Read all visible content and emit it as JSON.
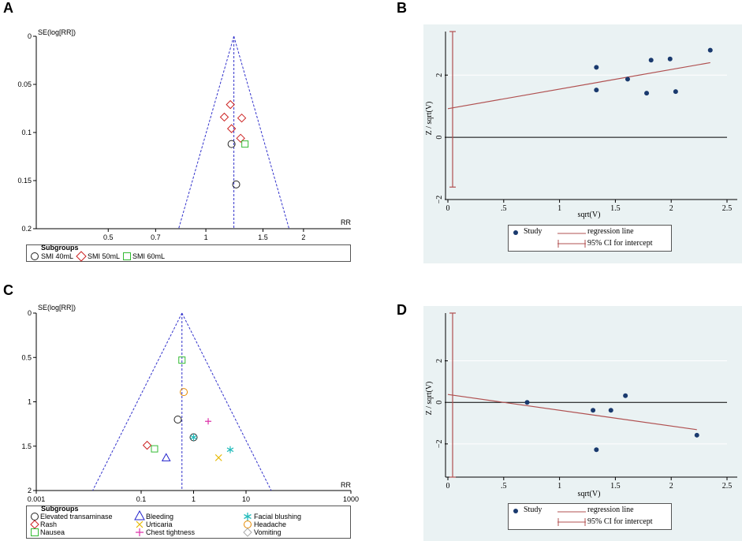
{
  "panels": {
    "A": {
      "letter": "A",
      "ylabel": "SE(log[RR])",
      "xlabel": "RR",
      "y_ticks": [
        "0",
        "0.05",
        "0.1",
        "0.15",
        "0.2"
      ],
      "x_ticks": [
        "0.5",
        "0.7",
        "1",
        "1.5",
        "2"
      ],
      "legend_title": "Subgroups",
      "legend": [
        "SMI 40mL",
        "SMI 50mL",
        "SMI 60mL"
      ]
    },
    "B": {
      "letter": "B",
      "ylabel": "Z / sqrt(V)",
      "xlabel": "sqrt(V)",
      "y_ticks": [
        "−2",
        "0",
        "2"
      ],
      "x_ticks": [
        "0",
        ".5",
        "1",
        "1.5",
        "2",
        "2.5"
      ],
      "legend": [
        "Study",
        "regression line",
        "95% CI for intercept"
      ]
    },
    "C": {
      "letter": "C",
      "ylabel": "SE(log[RR])",
      "xlabel": "RR",
      "y_ticks": [
        "0",
        "0.5",
        "1",
        "1.5",
        "2"
      ],
      "x_ticks": [
        "0.001",
        "0.1",
        "1",
        "10",
        "1000"
      ],
      "legend_title": "Subgroups",
      "legend": [
        "Elevated transaminase",
        "Bleeding",
        "Facial blushing",
        "Rash",
        "Urticaria",
        "Headache",
        "Nausea",
        "Chest tightness",
        "Vomiting"
      ]
    },
    "D": {
      "letter": "D",
      "ylabel": "Z / sqrt(V)",
      "xlabel": "sqrt(V)",
      "y_ticks": [
        "−2",
        "0",
        "2"
      ],
      "x_ticks": [
        "0",
        ".5",
        "1",
        "1.5",
        "2",
        "2.5"
      ],
      "legend": [
        "Study",
        "regression line",
        "95% CI for intercept"
      ]
    }
  },
  "colors": {
    "funnel": "#3333cc",
    "rr_line": "#3333cc",
    "regression": "#b05050",
    "study_dot": "#1a3a6e",
    "stata_bg": "#eaf2f3",
    "grid": "#ffffff",
    "circle": "#222222",
    "diamond": "#cc2222",
    "square": "#33bb33",
    "triangle": "#2222cc",
    "x_mark": "#e6b800",
    "asterisk": "#22bbbb",
    "plus": "#dd33aa",
    "headache": "#e68a00",
    "vomiting": "#aaaaaa"
  },
  "chart_data": [
    {
      "panel": "A",
      "type": "scatter",
      "title": "",
      "xlabel": "RR",
      "ylabel": "SE(log[RR])",
      "x_scale": "log",
      "xlim": [
        0.3,
        2.8
      ],
      "ylim": [
        0,
        0.2
      ],
      "pooled_rr": 1.22,
      "series": [
        {
          "name": "SMI 40mL",
          "marker": "circle",
          "points": [
            {
              "x": 1.2,
              "y": 0.112
            },
            {
              "x": 1.24,
              "y": 0.154
            }
          ]
        },
        {
          "name": "SMI 50mL",
          "marker": "diamond",
          "points": [
            {
              "x": 1.19,
              "y": 0.071
            },
            {
              "x": 1.14,
              "y": 0.084
            },
            {
              "x": 1.29,
              "y": 0.085
            },
            {
              "x": 1.2,
              "y": 0.096
            },
            {
              "x": 1.28,
              "y": 0.106
            }
          ]
        },
        {
          "name": "SMI 60mL",
          "marker": "square",
          "points": [
            {
              "x": 1.32,
              "y": 0.112
            }
          ]
        }
      ]
    },
    {
      "panel": "B",
      "type": "scatter",
      "title": "",
      "xlabel": "sqrt(V)",
      "ylabel": "Z / sqrt(V)",
      "xlim": [
        0,
        2.5
      ],
      "ylim": [
        -2,
        3.4
      ],
      "series": [
        {
          "name": "Study",
          "points": [
            {
              "x": 1.33,
              "y": 2.25
            },
            {
              "x": 1.33,
              "y": 1.52
            },
            {
              "x": 1.61,
              "y": 1.87
            },
            {
              "x": 1.78,
              "y": 1.42
            },
            {
              "x": 1.82,
              "y": 2.48
            },
            {
              "x": 1.99,
              "y": 2.52
            },
            {
              "x": 2.04,
              "y": 1.47
            },
            {
              "x": 2.35,
              "y": 2.8
            }
          ]
        }
      ],
      "regression": {
        "intercept": 0.92,
        "slope": 0.63,
        "x_range": [
          0,
          2.35
        ]
      },
      "intercept_ci": [
        -1.6,
        3.4
      ]
    },
    {
      "panel": "C",
      "type": "scatter",
      "title": "",
      "xlabel": "RR",
      "ylabel": "SE(log[RR])",
      "x_scale": "log",
      "xlim": [
        0.001,
        1000
      ],
      "ylim": [
        0,
        2
      ],
      "pooled_rr": 0.6,
      "series": [
        {
          "name": "Elevated transaminase",
          "marker": "circle",
          "points": [
            {
              "x": 0.5,
              "y": 1.2
            },
            {
              "x": 1.0,
              "y": 1.4
            }
          ]
        },
        {
          "name": "Bleeding",
          "marker": "triangle",
          "points": [
            {
              "x": 0.3,
              "y": 1.63
            }
          ]
        },
        {
          "name": "Facial blushing",
          "marker": "asterisk",
          "points": [
            {
              "x": 5.0,
              "y": 1.54
            },
            {
              "x": 1.0,
              "y": 1.4
            }
          ]
        },
        {
          "name": "Rash",
          "marker": "diamond",
          "points": [
            {
              "x": 0.13,
              "y": 1.49
            }
          ]
        },
        {
          "name": "Urticaria",
          "marker": "x",
          "points": [
            {
              "x": 3.0,
              "y": 1.63
            }
          ]
        },
        {
          "name": "Headache",
          "marker": "circle",
          "points": [
            {
              "x": 0.65,
              "y": 0.89
            }
          ]
        },
        {
          "name": "Nausea",
          "marker": "square",
          "points": [
            {
              "x": 0.6,
              "y": 0.53
            },
            {
              "x": 0.18,
              "y": 1.53
            }
          ]
        },
        {
          "name": "Chest tightness",
          "marker": "plus",
          "points": [
            {
              "x": 1.9,
              "y": 1.22
            }
          ]
        },
        {
          "name": "Vomiting",
          "marker": "diamond",
          "points": []
        }
      ]
    },
    {
      "panel": "D",
      "type": "scatter",
      "title": "",
      "xlabel": "sqrt(V)",
      "ylabel": "Z / sqrt(V)",
      "xlim": [
        0,
        2.5
      ],
      "ylim": [
        -3.6,
        4.3
      ],
      "series": [
        {
          "name": "Study",
          "points": [
            {
              "x": 0.71,
              "y": 0.0
            },
            {
              "x": 1.3,
              "y": -0.38
            },
            {
              "x": 1.33,
              "y": -2.28
            },
            {
              "x": 1.46,
              "y": -0.38
            },
            {
              "x": 1.59,
              "y": 0.32
            },
            {
              "x": 2.23,
              "y": -1.58
            }
          ]
        }
      ],
      "regression": {
        "intercept": 0.38,
        "slope": -0.76,
        "x_range": [
          0,
          2.23
        ]
      },
      "intercept_ci": [
        -3.6,
        4.3
      ]
    }
  ]
}
